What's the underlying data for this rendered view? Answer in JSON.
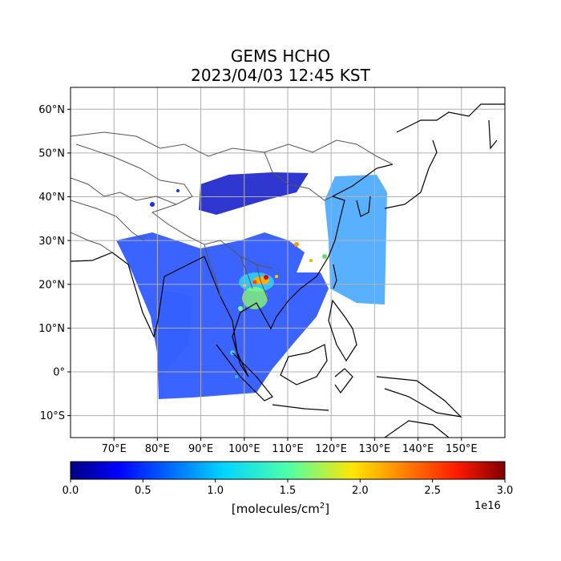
{
  "title": {
    "line1": "GEMS HCHO",
    "line2": "2023/04/03 12:45 KST"
  },
  "map": {
    "lon_range": [
      60,
      160
    ],
    "lat_range": [
      -15,
      65
    ],
    "lon_ticks": [
      "70°E",
      "80°E",
      "90°E",
      "100°E",
      "110°E",
      "120°E",
      "130°E",
      "140°E",
      "150°E"
    ],
    "lat_ticks": [
      "60°N",
      "50°N",
      "40°N",
      "30°N",
      "20°N",
      "10°N",
      "0°",
      "10°S"
    ],
    "grid": true,
    "coastline_color": "#000000",
    "border_color": "#555555"
  },
  "colorbar": {
    "ticks": [
      "0.0",
      "0.5",
      "1.0",
      "1.5",
      "2.0",
      "2.5",
      "3.0"
    ],
    "exponent": "1e16",
    "unit_prefix": "[molecules/cm",
    "unit_power": "2",
    "unit_suffix": "]",
    "range": [
      0,
      3.0
    ],
    "colormap": "jet"
  }
}
